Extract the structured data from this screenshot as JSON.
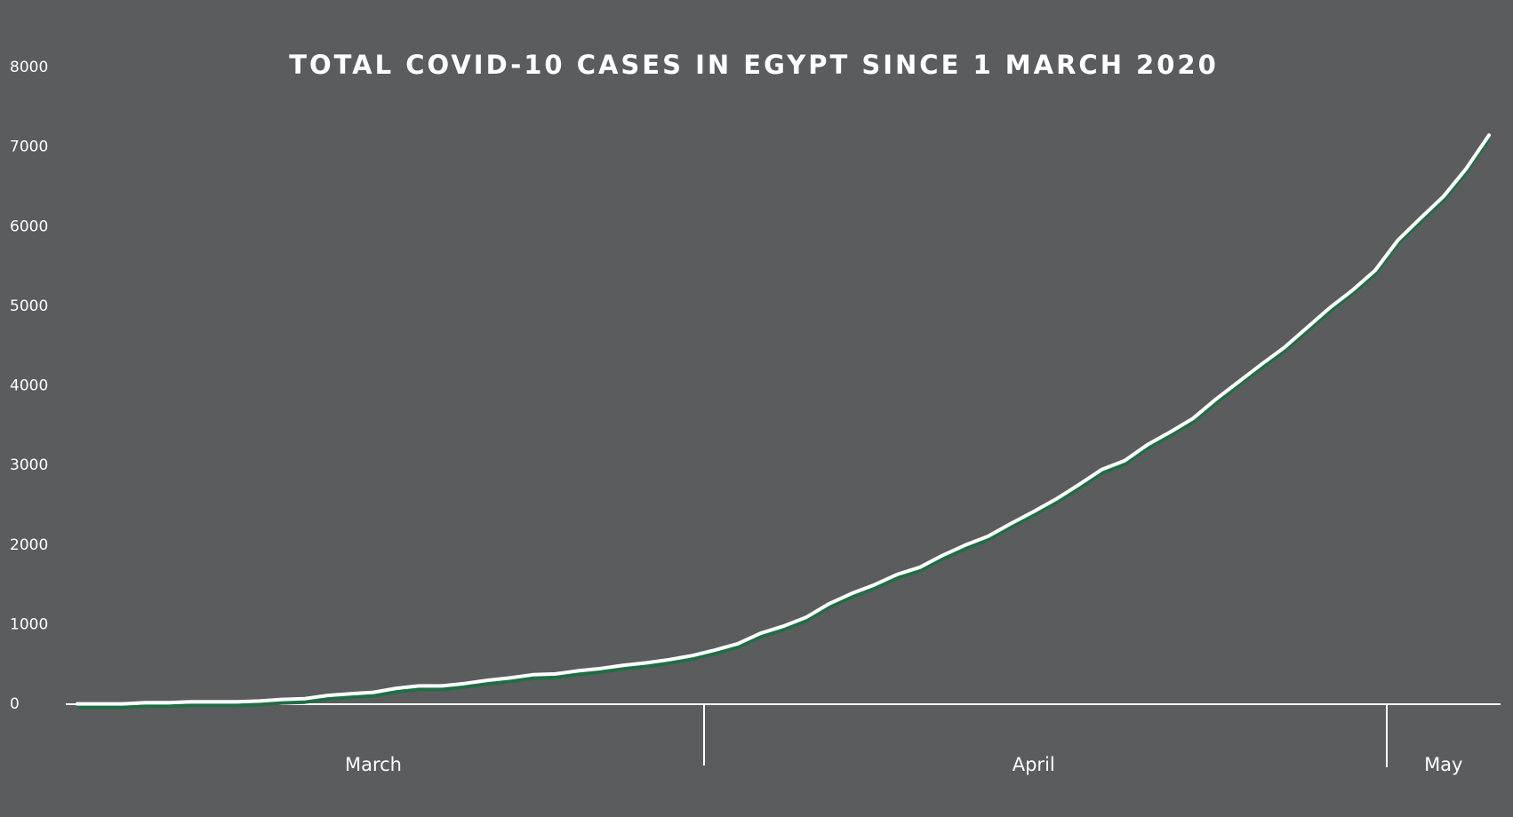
{
  "chart_data": {
    "type": "line",
    "title": "TOTAL COVID-10 CASES IN EGYPT SINCE 1 MARCH 2020",
    "categories": [
      null,
      null,
      null,
      null,
      null,
      null,
      null,
      null,
      null,
      null,
      null,
      null,
      null,
      "March",
      null,
      null,
      null,
      null,
      null,
      null,
      null,
      null,
      null,
      null,
      null,
      null,
      null,
      null,
      null,
      null,
      null,
      null,
      null,
      null,
      null,
      null,
      null,
      null,
      null,
      null,
      null,
      null,
      "April",
      null,
      null,
      null,
      null,
      null,
      null,
      null,
      null,
      null,
      null,
      null,
      null,
      null,
      null,
      null,
      null,
      null,
      "May",
      null,
      null
    ],
    "values": [
      5,
      5,
      5,
      20,
      20,
      30,
      30,
      30,
      40,
      60,
      70,
      110,
      130,
      150,
      200,
      230,
      230,
      260,
      300,
      330,
      370,
      380,
      420,
      450,
      490,
      520,
      560,
      610,
      680,
      760,
      890,
      980,
      1090,
      1260,
      1390,
      1500,
      1630,
      1720,
      1870,
      2000,
      2110,
      2270,
      2420,
      2580,
      2760,
      2950,
      3060,
      3260,
      3420,
      3590,
      3830,
      4050,
      4270,
      4480,
      4730,
      4980,
      5200,
      5450,
      5830,
      6110,
      6380,
      6730,
      7150
    ],
    "color": "#ffffff",
    "ylim": [
      0,
      8000
    ],
    "yticks": [
      0,
      1000,
      2000,
      3000,
      4000,
      5000,
      6000,
      7000,
      8000
    ],
    "grid": false
  }
}
